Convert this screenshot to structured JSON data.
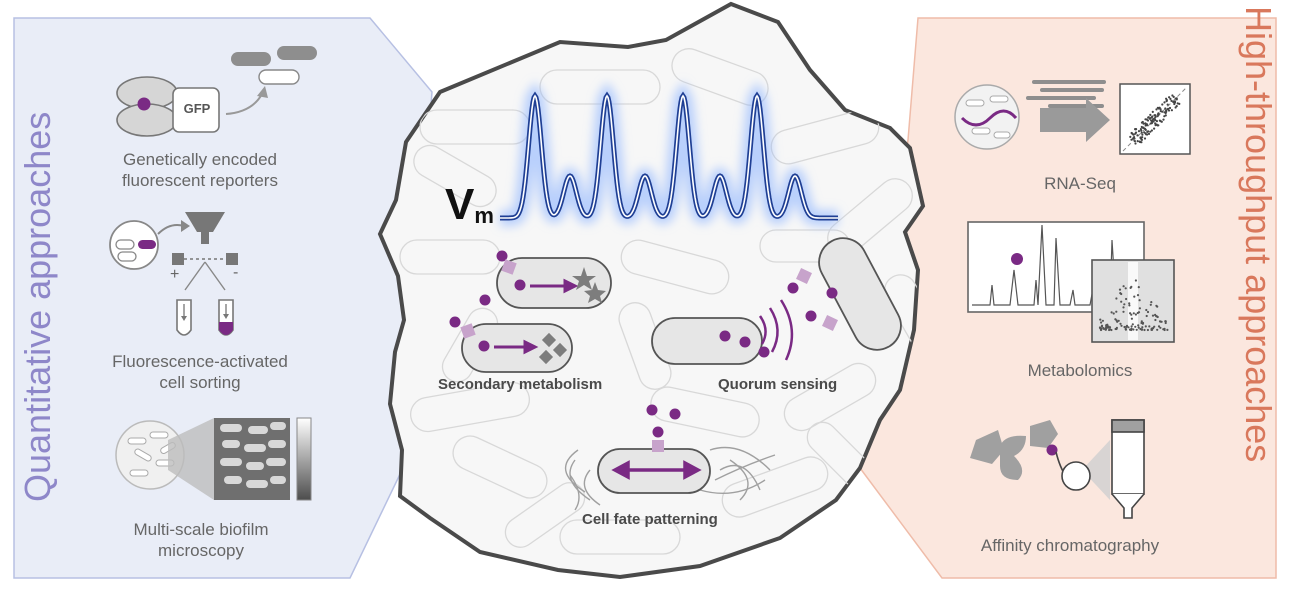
{
  "panels": {
    "left": {
      "title": "Quantitative approaches",
      "methods": [
        {
          "label": "Genetically encoded\nfluorescent reporters",
          "icon": "gfp-reporter-icon",
          "badge": "GFP"
        },
        {
          "label": "Fluorescence-activated\ncell sorting",
          "icon": "facs-sorter-icon",
          "signs": [
            "+",
            "-"
          ]
        },
        {
          "label": "Multi-scale biofilm\nmicroscopy",
          "icon": "biofilm-microscopy-icon"
        }
      ]
    },
    "right": {
      "title": "High-throughput approaches",
      "methods": [
        {
          "label": "RNA-Seq",
          "icon": "rna-seq-icon"
        },
        {
          "label": "Metabolomics",
          "icon": "metabolomics-spectrum-icon"
        },
        {
          "label": "Affinity chromatography",
          "icon": "affinity-column-icon"
        }
      ]
    }
  },
  "center": {
    "signal_label": "V",
    "signal_subscript": "m",
    "processes": [
      "Secondary metabolism",
      "Quorum sensing",
      "Cell fate patterning"
    ]
  },
  "colors": {
    "left_panel": "#e9edf7",
    "left_border": "#b7c0e3",
    "left_title": "#8e87c9",
    "right_panel": "#fbe7de",
    "right_border": "#efbca9",
    "right_title": "#d9785c",
    "signal": "#1f3f94",
    "glow": "#8fb6ff",
    "molecule": "#7a2a84",
    "receptor": "#c7a3cb"
  }
}
